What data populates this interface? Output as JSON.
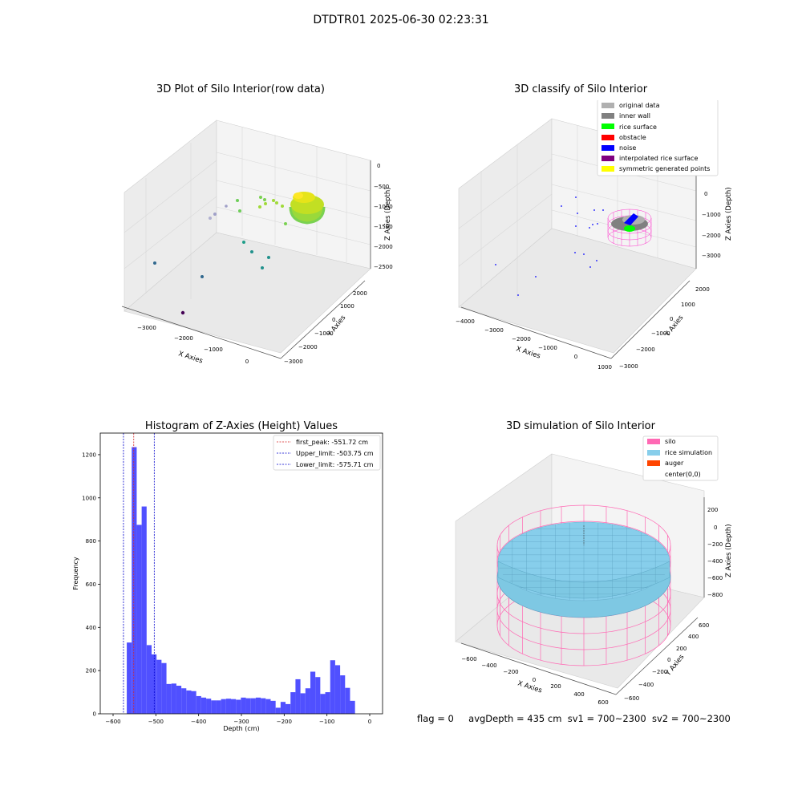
{
  "figure": {
    "suptitle": "DTDTR01 2025-06-30 02:23:31",
    "status_line": {
      "flag": "flag = 0",
      "avg_depth": "avgDepth = 435 cm",
      "sv1": "sv1 = 700~2300",
      "sv2": "sv2 = 700~2300"
    }
  },
  "colors": {
    "histogram_bar": "#5050ff",
    "first_peak_line": "#d62728",
    "limit_line": "#0000cc",
    "silo_wire": "#ff69b4",
    "rice_fill": "#87ceeb",
    "pane_gray": "#f0f0f0"
  },
  "chart_data": [
    {
      "type": "scatter",
      "projection": "3d",
      "title": "3D Plot of Silo Interior(row data)",
      "xlabel": "X Axies",
      "ylabel": "Y Axies",
      "zlabel": "Z Axies (Depth)",
      "x_ticks": [
        "−3000",
        "−2000",
        "−1000",
        "0"
      ],
      "y_ticks": [
        "2000",
        "1000",
        "0",
        "−1000",
        "−2000",
        "−3000"
      ],
      "z_ticks": [
        "0",
        "−500",
        "−1000",
        "−1500",
        "−2000",
        "−2500"
      ],
      "colormap": "viridis",
      "note_points": "sparse outlier points plus dense ring cluster near silo surface"
    },
    {
      "type": "scatter",
      "projection": "3d",
      "title": "3D classify of Silo Interior",
      "xlabel": "X Axies",
      "ylabel": "Y Axies",
      "zlabel": "Z Axies (Depth)",
      "x_ticks": [
        "−4000",
        "−3000",
        "−2000",
        "−1000",
        "0",
        "1000"
      ],
      "y_ticks": [
        "2000",
        "1000",
        "0",
        "−1000",
        "−2000",
        "−3000"
      ],
      "z_ticks": [
        "1000",
        "0",
        "−1000",
        "−2000",
        "−3000"
      ],
      "legend": [
        {
          "label": "original data",
          "color": "#b0b0b0"
        },
        {
          "label": "inner wall",
          "color": "#808080"
        },
        {
          "label": "rice surface",
          "color": "#00ff00"
        },
        {
          "label": "obstacle",
          "color": "#ff0000"
        },
        {
          "label": "noise",
          "color": "#0000ff"
        },
        {
          "label": "interpolated rice surface",
          "color": "#800080"
        },
        {
          "label": "symmetric generated points",
          "color": "#ffff00"
        }
      ],
      "legend_loc": "upper right"
    },
    {
      "type": "bar",
      "title": "Histogram of Z-Axies (Height) Values",
      "xlabel": "Depth (cm)",
      "ylabel": "Frequency",
      "xlim": [
        -630,
        30
      ],
      "ylim": [
        0,
        1300
      ],
      "x_ticks": [
        -600,
        -500,
        -400,
        -300,
        -200,
        -100,
        0
      ],
      "y_ticks": [
        0,
        200,
        400,
        600,
        800,
        1000,
        1200
      ],
      "bin_start": -568,
      "bin_width": 11.6,
      "values": [
        330,
        1235,
        875,
        960,
        318,
        275,
        250,
        235,
        138,
        140,
        130,
        118,
        108,
        105,
        82,
        75,
        70,
        62,
        62,
        68,
        70,
        68,
        65,
        75,
        72,
        72,
        75,
        72,
        68,
        60,
        28,
        55,
        45,
        100,
        160,
        95,
        118,
        195,
        170,
        92,
        100,
        248,
        225,
        178,
        120,
        60
      ],
      "vlines": [
        {
          "label": "first_peak: -551.72 cm",
          "x": -551.72,
          "style": "dashed",
          "color": "#d62728"
        },
        {
          "label": "Upper_limit: -503.75 cm",
          "x": -503.75,
          "style": "dashed",
          "color": "#0000cc"
        },
        {
          "label": "Lower_limit: -575.71 cm",
          "x": -575.71,
          "style": "dashed",
          "color": "#0000cc"
        }
      ],
      "legend_loc": "upper right"
    },
    {
      "type": "area",
      "projection": "3d",
      "title": "3D simulation of Silo Interior",
      "xlabel": "X Axies",
      "ylabel": "Y Axies",
      "zlabel": "Z Axies (Depth)",
      "x_ticks": [
        "−600",
        "−400",
        "−200",
        "0",
        "200",
        "400",
        "600"
      ],
      "y_ticks": [
        "600",
        "400",
        "200",
        "0",
        "−200",
        "−400",
        "−600"
      ],
      "z_ticks": [
        "200",
        "0",
        "−200",
        "−400",
        "−600",
        "−800"
      ],
      "legend": [
        {
          "label": "silo",
          "color": "#ff69b4"
        },
        {
          "label": "rice simulation",
          "color": "#87ceeb"
        },
        {
          "label": "auger",
          "color": "#ff4500"
        },
        {
          "label": "center(0,0)",
          "color": "#ffffff"
        }
      ],
      "legend_loc": "upper right"
    }
  ]
}
